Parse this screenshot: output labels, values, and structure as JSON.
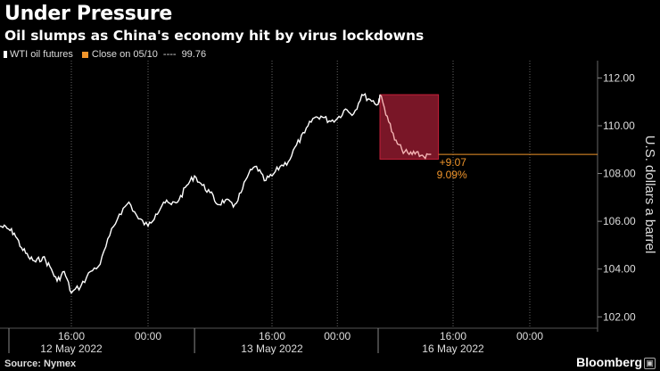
{
  "title": "Under Pressure",
  "subtitle": "Oil slumps as China's economy hit by virus lockdowns",
  "legend": {
    "series_label": "WTI oil futures",
    "close_label": "Close on 05/10",
    "close_dashes": "----",
    "close_value": "99.76"
  },
  "footer": {
    "source": "Source: Nymex",
    "brand": "Bloomberg",
    "brand_icon": "bloomberg-icon"
  },
  "colors": {
    "line": "#ffffff",
    "accent": "#f0952b",
    "highlight": "#8e1a2e",
    "highlight_border": "#c4203a",
    "drop_line": "#f4b4b4"
  },
  "chart_data": {
    "type": "line",
    "title": "Under Pressure",
    "subtitle": "Oil slumps as China's economy hit by virus lockdowns",
    "xlabel": "",
    "ylabel": "U.S. dollars a barrel",
    "y_axis_position": "right",
    "ylim": [
      101.6,
      112.5
    ],
    "y_ticks": [
      102,
      104,
      106,
      108,
      110,
      112
    ],
    "y_tick_labels": [
      "102.00",
      "104.00",
      "106.00",
      "108.00",
      "110.00",
      "112.00"
    ],
    "x_tick_labels": [
      {
        "label": "16:00",
        "x": "2022-05-12 16:00"
      },
      {
        "label": "00:00",
        "x": "2022-05-13 00:00"
      },
      {
        "label": "16:00",
        "x": "2022-05-13 16:00"
      },
      {
        "label": "00:00",
        "x": "2022-05-14 00:00"
      },
      {
        "label": "16:00",
        "x": "2022-05-16 16:00"
      },
      {
        "label": "00:00",
        "x": "2022-05-17 00:00"
      }
    ],
    "day_labels": [
      {
        "label": "12 May 2022",
        "x": "2022-05-12 16:00"
      },
      {
        "label": "13 May 2022",
        "x": "2022-05-13 16:00"
      },
      {
        "label": "16 May 2022",
        "x": "2022-05-16 16:00"
      }
    ],
    "gridlines": "vertical dotted",
    "legend_position": "top-left",
    "series": [
      {
        "name": "WTI oil futures",
        "x": [
          "2022-05-12 06:00",
          "2022-05-12 07:00",
          "2022-05-12 08:00",
          "2022-05-12 09:00",
          "2022-05-12 10:00",
          "2022-05-12 11:00",
          "2022-05-12 12:00",
          "2022-05-12 13:00",
          "2022-05-12 14:00",
          "2022-05-12 15:00",
          "2022-05-12 16:00",
          "2022-05-12 17:00",
          "2022-05-12 18:00",
          "2022-05-12 19:00",
          "2022-05-12 20:00",
          "2022-05-12 21:00",
          "2022-05-12 22:00",
          "2022-05-12 23:00",
          "2022-05-13 00:00",
          "2022-05-13 01:00",
          "2022-05-13 02:00",
          "2022-05-13 03:00",
          "2022-05-13 04:00",
          "2022-05-13 05:00",
          "2022-05-13 06:00",
          "2022-05-13 07:00",
          "2022-05-13 08:00",
          "2022-05-13 09:00",
          "2022-05-13 10:00",
          "2022-05-13 11:00",
          "2022-05-13 12:00",
          "2022-05-13 13:00",
          "2022-05-13 14:00",
          "2022-05-13 15:00",
          "2022-05-13 16:00",
          "2022-05-13 17:00",
          "2022-05-13 18:00",
          "2022-05-13 19:00",
          "2022-05-13 20:00",
          "2022-05-13 21:00",
          "2022-05-13 22:00",
          "2022-05-13 23:00",
          "2022-05-14 00:00",
          "2022-05-14 01:00",
          "2022-05-14 02:00",
          "2022-05-14 03:00",
          "2022-05-14 04:00",
          "2022-05-14 05:00",
          "2022-05-16 06:00",
          "2022-05-16 07:00",
          "2022-05-16 08:00",
          "2022-05-16 09:00",
          "2022-05-16 10:00",
          "2022-05-16 11:00",
          "2022-05-16 12:00",
          "2022-05-16 13:00"
        ],
        "values": [
          105.8,
          105.7,
          105.5,
          104.9,
          104.5,
          104.3,
          104.5,
          104.1,
          103.5,
          103.9,
          103.0,
          103.3,
          103.9,
          104.2,
          105.4,
          106.3,
          106.8,
          106.1,
          105.8,
          106.3,
          106.8,
          106.7,
          106.9,
          107.5,
          107.9,
          107.5,
          107.2,
          106.7,
          106.9,
          106.6,
          107.2,
          108.0,
          108.3,
          107.7,
          107.9,
          108.3,
          108.5,
          109.2,
          109.7,
          110.3,
          110.4,
          110.2,
          110.3,
          110.7,
          110.5,
          111.3,
          111.1,
          110.9,
          111.3,
          110.4,
          109.4,
          109.0,
          108.8,
          108.9,
          108.7,
          108.8
        ]
      }
    ],
    "close_series": {
      "name": "Close on 05/10",
      "value": 99.76
    },
    "annotation": {
      "highlight_from": "2022-05-16 06:00",
      "highlight_to": "2022-05-16 14:00",
      "highlight_ymax": 111.3,
      "highlight_ymin": 108.6,
      "reference_value": 108.8,
      "change_label": "+9.07",
      "change_pct_label": "9.09%"
    }
  }
}
